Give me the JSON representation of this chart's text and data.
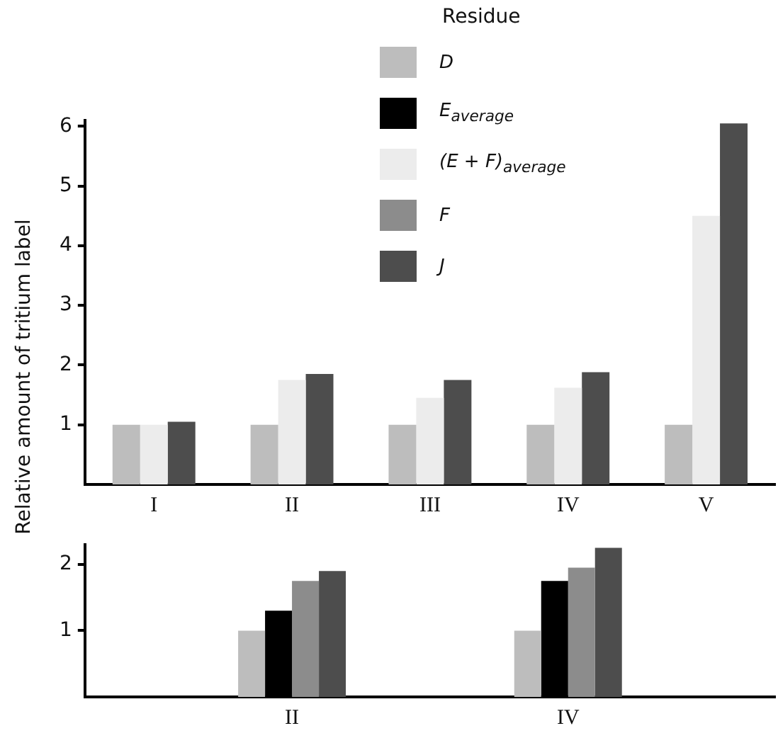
{
  "chart_data": [
    {
      "type": "bar",
      "ylabel": "Relative amount of tritium label",
      "legend_title": "Residue",
      "legend": "top",
      "categories": [
        "I",
        "II",
        "III",
        "IV",
        "V"
      ],
      "series": [
        {
          "name": "D",
          "color": "#bdbdbd",
          "values": [
            1,
            1,
            1,
            1,
            1
          ]
        },
        {
          "name": "(E + F)$_{average}$",
          "color": "#ececec",
          "values": [
            1,
            1.75,
            1.45,
            1.62,
            4.5
          ]
        },
        {
          "name": "J",
          "color": "#4d4d4d",
          "values": [
            1.05,
            1.85,
            1.75,
            1.88,
            6.05
          ]
        }
      ],
      "ylim": [
        0,
        6.1
      ],
      "yticks": [
        1,
        2,
        3,
        4,
        5,
        6
      ],
      "grid": false
    },
    {
      "type": "bar",
      "categories": [
        null,
        "II",
        null,
        "IV",
        null
      ],
      "series": [
        {
          "color": "#bdbdbd",
          "values": [
            null,
            1,
            null,
            1,
            null
          ]
        },
        {
          "name": "E$_{average}$",
          "color": "#000000",
          "values": [
            null,
            1.3,
            null,
            1.75,
            null
          ]
        },
        {
          "name": "F",
          "color": "#8c8c8c",
          "values": [
            null,
            1.75,
            null,
            1.95,
            null
          ]
        },
        {
          "color": "#4d4d4d",
          "values": [
            null,
            1.9,
            null,
            2.25,
            null
          ]
        }
      ],
      "ylim": [
        0,
        2.3
      ],
      "yticks": [
        1,
        2
      ],
      "grid": false,
      "legend": "top"
    }
  ]
}
